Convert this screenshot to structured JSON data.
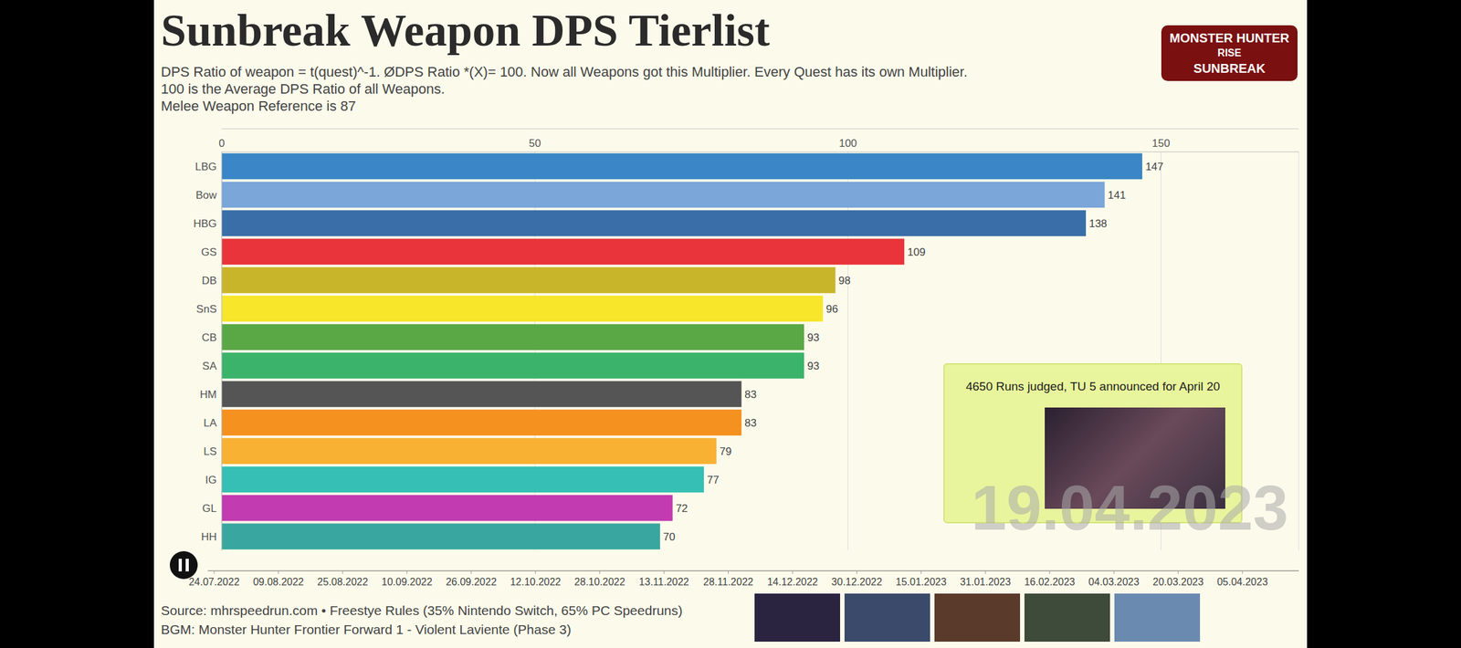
{
  "chart_data": {
    "type": "bar",
    "orientation": "horizontal",
    "title": "Sunbreak Weapon DPS Tierlist",
    "subtitle": [
      "DPS Ratio of weapon = t(quest)^-1. ØDPS Ratio *(X)= 100. Now all Weapons got this Multiplier. Every Quest has its own Multiplier.",
      "100 is the Average DPS Ratio of all Weapons.",
      "Melee Weapon Reference is 87"
    ],
    "categories": [
      "LBG",
      "Bow",
      "HBG",
      "GS",
      "DB",
      "SnS",
      "CB",
      "SA",
      "HM",
      "LA",
      "LS",
      "IG",
      "GL",
      "HH"
    ],
    "values": [
      147,
      141,
      138,
      109,
      98,
      96,
      93,
      93,
      83,
      83,
      79,
      77,
      72,
      70
    ],
    "colors": [
      "#3a86c6",
      "#7aa6da",
      "#3a6ea8",
      "#e8343a",
      "#c9b52a",
      "#f7e62a",
      "#5aa845",
      "#3bb36a",
      "#555555",
      "#f4911f",
      "#f8b133",
      "#36bfb4",
      "#c23bb0",
      "#39a79f"
    ],
    "xlim": [
      0,
      172
    ],
    "xticks": [
      0,
      50,
      100,
      150
    ],
    "grid": true,
    "data_labels": true,
    "annotations": {
      "box": "4650 Runs judged, TU 5 announced for April 20",
      "date": "19.04.2023",
      "timeline": [
        "24.07.2022",
        "09.08.2022",
        "25.08.2022",
        "10.09.2022",
        "26.09.2022",
        "12.10.2022",
        "28.10.2022",
        "13.11.2022",
        "28.11.2022",
        "14.12.2022",
        "30.12.2022",
        "15.01.2023",
        "31.01.2023",
        "16.02.2023",
        "04.03.2023",
        "20.03.2023",
        "05.04.2023"
      ],
      "source": "Source: mhrspeedrun.com • Freestye Rules (35% Nintendo Switch, 65% PC Speedruns)",
      "bgm": "BGM: Monster Hunter Frontier Forward 1 - Violent Laviente (Phase 3)",
      "logo": [
        "MONSTER HUNTER",
        "RISE",
        "SUNBREAK"
      ]
    }
  }
}
